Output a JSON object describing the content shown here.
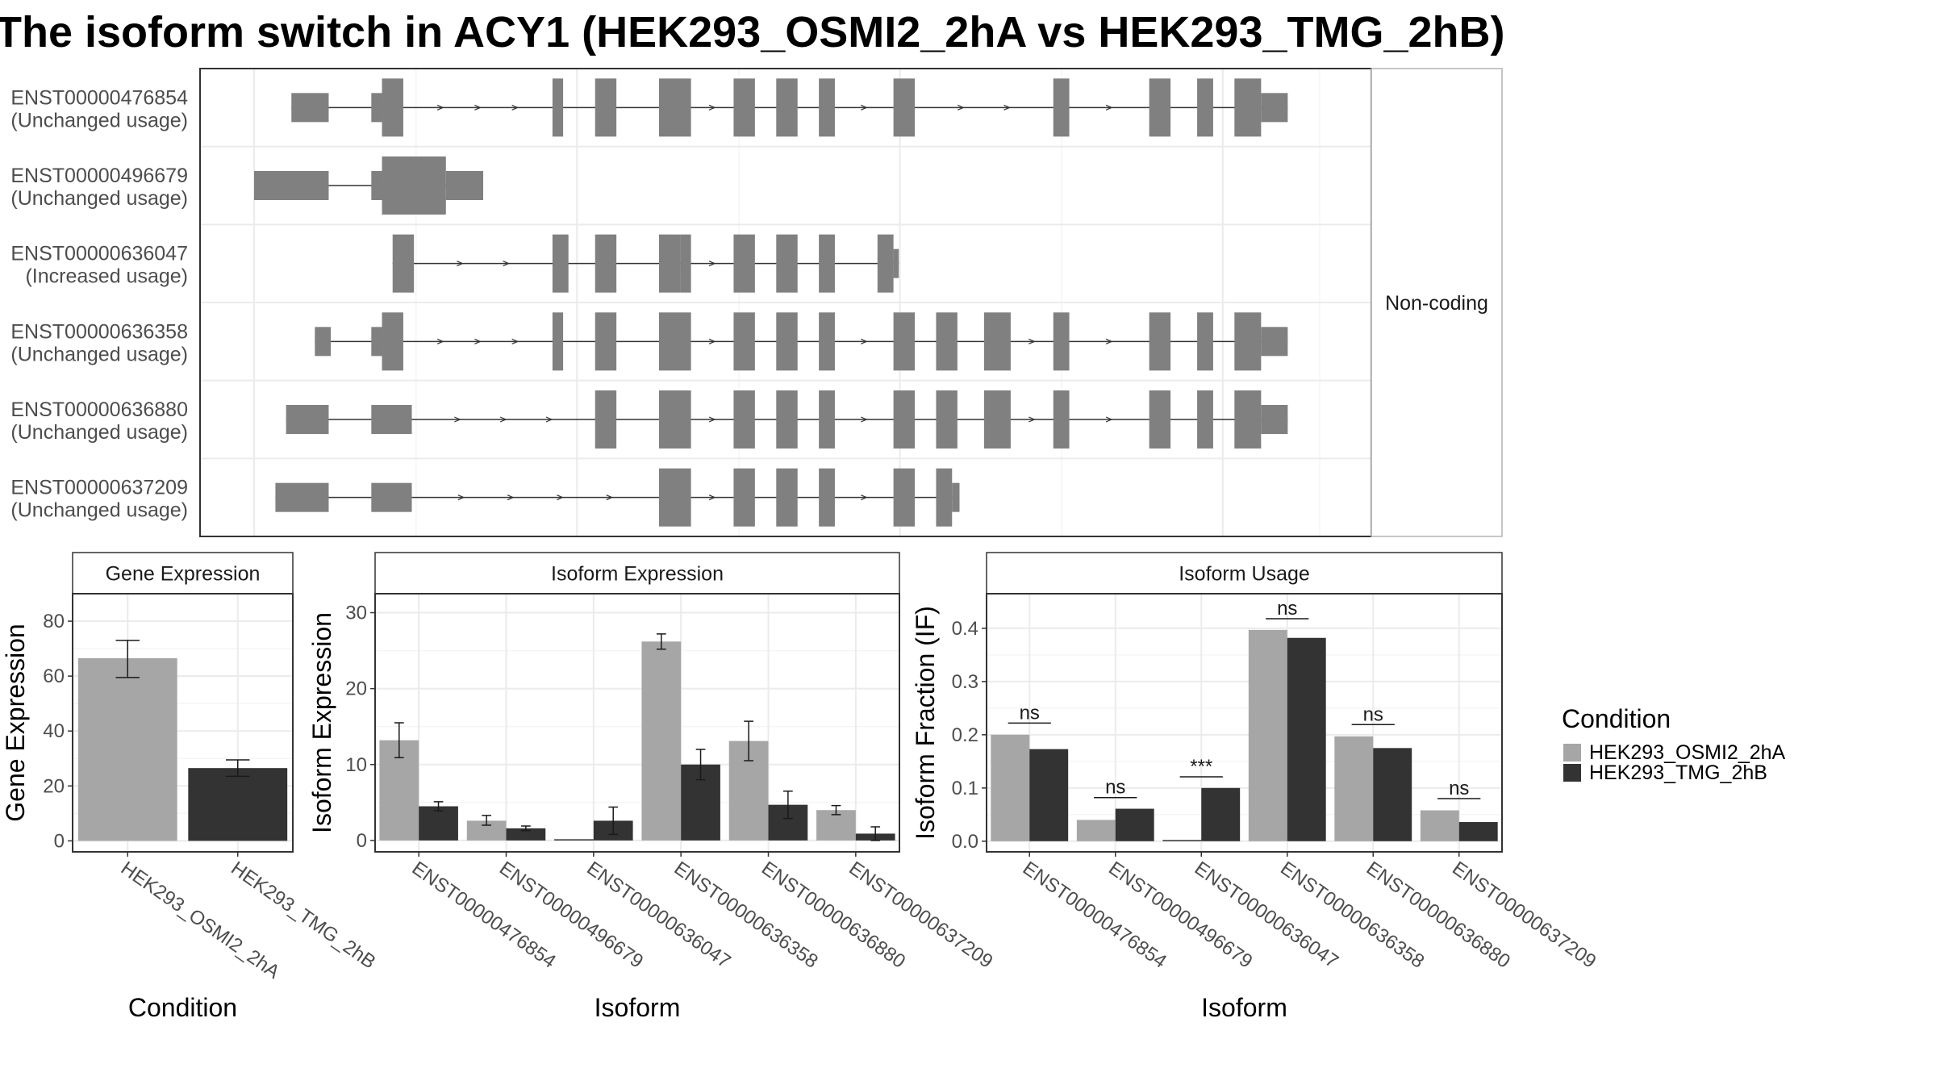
{
  "chart_data": [
    {
      "type": "gene-structure",
      "title": "The isoform switch in ACY1 (HEK293_OSMI2_2hA vs HEK293_TMG_2hB)",
      "facet_label": "Non-coding",
      "transcripts": [
        {
          "id": "ENST00000476854",
          "usage": "(Unchanged usage)",
          "exons": [
            [
              0.035,
              0.07,
              "u"
            ],
            [
              0.11,
              0.12,
              "u"
            ],
            [
              0.12,
              0.14,
              "c"
            ],
            [
              0.28,
              0.29,
              "c"
            ],
            [
              0.32,
              0.34,
              "c"
            ],
            [
              0.38,
              0.41,
              "c"
            ],
            [
              0.45,
              0.47,
              "c"
            ],
            [
              0.49,
              0.51,
              "c"
            ],
            [
              0.53,
              0.545,
              "c"
            ],
            [
              0.6,
              0.62,
              "c"
            ],
            [
              0.75,
              0.765,
              "c"
            ],
            [
              0.84,
              0.86,
              "c"
            ],
            [
              0.885,
              0.9,
              "c"
            ],
            [
              0.92,
              0.945,
              "c"
            ],
            [
              0.945,
              0.97,
              "u"
            ]
          ]
        },
        {
          "id": "ENST00000496679",
          "usage": "(Unchanged usage)",
          "exons": [
            [
              0.0,
              0.07,
              "u"
            ],
            [
              0.11,
              0.12,
              "u"
            ],
            [
              0.12,
              0.18,
              "c"
            ],
            [
              0.18,
              0.215,
              "u"
            ]
          ]
        },
        {
          "id": "ENST00000636047",
          "usage": "(Increased usage)",
          "exons": [
            [
              0.13,
              0.15,
              "c"
            ],
            [
              0.28,
              0.295,
              "c"
            ],
            [
              0.32,
              0.34,
              "c"
            ],
            [
              0.38,
              0.4,
              "c"
            ],
            [
              0.4,
              0.41,
              "t"
            ],
            [
              0.45,
              0.47,
              "c"
            ],
            [
              0.49,
              0.51,
              "c"
            ],
            [
              0.53,
              0.545,
              "c"
            ],
            [
              0.585,
              0.6,
              "c"
            ],
            [
              0.6,
              0.605,
              "u"
            ]
          ]
        },
        {
          "id": "ENST00000636358",
          "usage": "(Unchanged usage)",
          "exons": [
            [
              0.057,
              0.072,
              "u"
            ],
            [
              0.11,
              0.12,
              "u"
            ],
            [
              0.12,
              0.14,
              "c"
            ],
            [
              0.28,
              0.29,
              "c"
            ],
            [
              0.32,
              0.34,
              "c"
            ],
            [
              0.38,
              0.41,
              "c"
            ],
            [
              0.45,
              0.47,
              "c"
            ],
            [
              0.49,
              0.51,
              "c"
            ],
            [
              0.53,
              0.545,
              "c"
            ],
            [
              0.6,
              0.62,
              "c"
            ],
            [
              0.64,
              0.66,
              "c"
            ],
            [
              0.685,
              0.71,
              "c"
            ],
            [
              0.75,
              0.765,
              "c"
            ],
            [
              0.84,
              0.86,
              "c"
            ],
            [
              0.885,
              0.9,
              "c"
            ],
            [
              0.92,
              0.945,
              "c"
            ],
            [
              0.945,
              0.97,
              "u"
            ]
          ]
        },
        {
          "id": "ENST00000636880",
          "usage": "(Unchanged usage)",
          "exons": [
            [
              0.03,
              0.07,
              "u"
            ],
            [
              0.11,
              0.148,
              "u"
            ],
            [
              0.32,
              0.34,
              "c"
            ],
            [
              0.38,
              0.41,
              "c"
            ],
            [
              0.45,
              0.47,
              "c"
            ],
            [
              0.49,
              0.51,
              "c"
            ],
            [
              0.53,
              0.545,
              "c"
            ],
            [
              0.6,
              0.62,
              "c"
            ],
            [
              0.64,
              0.66,
              "c"
            ],
            [
              0.685,
              0.71,
              "c"
            ],
            [
              0.75,
              0.765,
              "c"
            ],
            [
              0.84,
              0.86,
              "c"
            ],
            [
              0.885,
              0.9,
              "c"
            ],
            [
              0.92,
              0.945,
              "c"
            ],
            [
              0.945,
              0.97,
              "u"
            ]
          ]
        },
        {
          "id": "ENST00000637209",
          "usage": "(Unchanged usage)",
          "exons": [
            [
              0.02,
              0.07,
              "u"
            ],
            [
              0.11,
              0.148,
              "u"
            ],
            [
              0.38,
              0.41,
              "c"
            ],
            [
              0.45,
              0.47,
              "c"
            ],
            [
              0.49,
              0.51,
              "c"
            ],
            [
              0.53,
              0.545,
              "c"
            ],
            [
              0.6,
              0.62,
              "c"
            ],
            [
              0.64,
              0.655,
              "c"
            ],
            [
              0.655,
              0.662,
              "u"
            ]
          ]
        }
      ]
    },
    {
      "type": "bar",
      "title": "Gene Expression",
      "xlabel": "Condition",
      "ylabel": "Gene Expression",
      "ylim": [
        -4,
        90
      ],
      "yticks": [
        0,
        20,
        40,
        60,
        80
      ],
      "categories": [
        "HEK293_OSMI2_2hA",
        "HEK293_TMG_2hB"
      ],
      "values": [
        66.5,
        26.5
      ],
      "errors": [
        [
          59.5,
          73
        ],
        [
          23.5,
          29.5
        ]
      ],
      "colors": [
        "#a6a6a6",
        "#333333"
      ]
    },
    {
      "type": "bar",
      "title": "Isoform Expression",
      "xlabel": "Isoform",
      "ylabel": "Isoform Expression",
      "ylim": [
        -1.5,
        32.5
      ],
      "yticks": [
        0,
        10,
        20,
        30
      ],
      "categories": [
        "ENST00000476854",
        "ENST00000496679",
        "ENST00000636047",
        "ENST00000636358",
        "ENST00000636880",
        "ENST00000637209"
      ],
      "series": [
        {
          "name": "HEK293_OSMI2_2hA",
          "values": [
            13.2,
            2.6,
            0.0,
            26.2,
            13.1,
            4.0
          ],
          "errors": [
            [
              10.9,
              15.5
            ],
            [
              2.0,
              3.3
            ],
            [
              0,
              0
            ],
            [
              25.2,
              27.2
            ],
            [
              10.5,
              15.7
            ],
            [
              3.4,
              4.6
            ]
          ]
        },
        {
          "name": "HEK293_TMG_2hB",
          "values": [
            4.5,
            1.6,
            2.6,
            10.0,
            4.7,
            0.9
          ],
          "errors": [
            [
              3.9,
              5.1
            ],
            [
              1.3,
              1.9
            ],
            [
              0.8,
              4.4
            ],
            [
              8.0,
              12.0
            ],
            [
              2.9,
              6.5
            ],
            [
              0.0,
              1.8
            ]
          ]
        }
      ]
    },
    {
      "type": "bar",
      "title": "Isoform Usage",
      "xlabel": "Isoform",
      "ylabel": "Isoform Fraction (IF)",
      "ylim": [
        -0.02,
        0.465
      ],
      "yticks": [
        0.0,
        0.1,
        0.2,
        0.3,
        0.4
      ],
      "ytick_labels": [
        "0.0",
        "0.1",
        "0.2",
        "0.3",
        "0.4"
      ],
      "categories": [
        "ENST00000476854",
        "ENST00000496679",
        "ENST00000636047",
        "ENST00000636358",
        "ENST00000636880",
        "ENST00000637209"
      ],
      "series": [
        {
          "name": "HEK293_OSMI2_2hA",
          "values": [
            0.2,
            0.04,
            0.0,
            0.397,
            0.197,
            0.058
          ]
        },
        {
          "name": "HEK293_TMG_2hB",
          "values": [
            0.173,
            0.061,
            0.1,
            0.382,
            0.175,
            0.036
          ]
        }
      ],
      "significance": [
        {
          "label": "ns",
          "y": 0.222
        },
        {
          "label": "ns",
          "y": 0.082
        },
        {
          "label": "***",
          "y": 0.121
        },
        {
          "label": "ns",
          "y": 0.418
        },
        {
          "label": "ns",
          "y": 0.219
        },
        {
          "label": "ns",
          "y": 0.08
        }
      ]
    }
  ],
  "legend": {
    "title": "Condition",
    "items": [
      {
        "label": "HEK293_OSMI2_2hA",
        "color": "#a6a6a6"
      },
      {
        "label": "HEK293_TMG_2hB",
        "color": "#333333"
      }
    ]
  }
}
